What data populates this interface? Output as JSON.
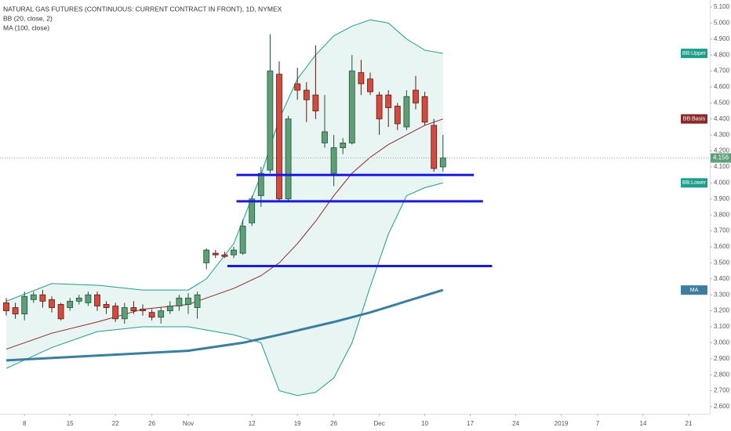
{
  "chart_data": {
    "type": "candlestick",
    "title": "NATURAL GAS FUTURES (CONTINUOUS: CURRENT CONTRACT IN FRONT), 1D, NYMEX",
    "indicator_legend": [
      "BB (20, close, 2)",
      "MA (100, close)"
    ],
    "xlim": [
      -0.69,
      77.33
    ],
    "xticks": [
      {
        "value": 2,
        "label": "8"
      },
      {
        "value": 7,
        "label": "15"
      },
      {
        "value": 12,
        "label": "22"
      },
      {
        "value": 16,
        "label": "26"
      },
      {
        "value": 20,
        "label": "Nov"
      },
      {
        "value": 27,
        "label": "12"
      },
      {
        "value": 32,
        "label": "19"
      },
      {
        "value": 36,
        "label": "26"
      },
      {
        "value": 41,
        "label": "Dec"
      },
      {
        "value": 46,
        "label": "10"
      },
      {
        "value": 51,
        "label": "17"
      },
      {
        "value": 56,
        "label": "24"
      },
      {
        "value": 61,
        "label": "2019"
      },
      {
        "value": 65,
        "label": "7"
      },
      {
        "value": 70,
        "label": "14"
      },
      {
        "value": 75,
        "label": "21"
      }
    ],
    "ylim": [
      2.556,
      5.144
    ],
    "yticks": [
      {
        "value": 2.6,
        "label": "2.600"
      },
      {
        "value": 2.7,
        "label": "2.700"
      },
      {
        "value": 2.8,
        "label": "2.800"
      },
      {
        "value": 2.9,
        "label": "2.900"
      },
      {
        "value": 3.0,
        "label": "3.000"
      },
      {
        "value": 3.1,
        "label": "3.100"
      },
      {
        "value": 3.2,
        "label": "3.200"
      },
      {
        "value": 3.3,
        "label": "3.300"
      },
      {
        "value": 3.4,
        "label": "3.400"
      },
      {
        "value": 3.5,
        "label": "3.500"
      },
      {
        "value": 3.6,
        "label": "3.600"
      },
      {
        "value": 3.7,
        "label": "3.700"
      },
      {
        "value": 3.8,
        "label": "3.800"
      },
      {
        "value": 3.9,
        "label": "3.900"
      },
      {
        "value": 4.0,
        "label": "4.000"
      },
      {
        "value": 4.1,
        "label": "4.100"
      },
      {
        "value": 4.2,
        "label": "4.200"
      },
      {
        "value": 4.3,
        "label": "4.300"
      },
      {
        "value": 4.4,
        "label": "4.400"
      },
      {
        "value": 4.5,
        "label": "4.500"
      },
      {
        "value": 4.6,
        "label": "4.600"
      },
      {
        "value": 4.7,
        "label": "4.700"
      },
      {
        "value": 4.8,
        "label": "4.800"
      },
      {
        "value": 4.9,
        "label": "4.900"
      },
      {
        "value": 5.0,
        "label": "5.000"
      },
      {
        "value": 5.1,
        "label": "5.100"
      }
    ],
    "grid": false,
    "up_color": "#5e9e78",
    "up_border": "#225437",
    "down_color": "#d44a3f",
    "down_border": "#5b1a13",
    "x": [
      0,
      1,
      2,
      3,
      4,
      5,
      6,
      7,
      8,
      9,
      10,
      11,
      12,
      13,
      14,
      15,
      16,
      17,
      18,
      19,
      20,
      21,
      22,
      23,
      24,
      25,
      26,
      27,
      28,
      29,
      30,
      31,
      32,
      33,
      34,
      35,
      36,
      37,
      38,
      39,
      40,
      41,
      42,
      43,
      44,
      45,
      46,
      47,
      48
    ],
    "open": [
      3.25,
      3.22,
      3.18,
      3.27,
      3.3,
      3.27,
      3.24,
      3.22,
      3.26,
      3.25,
      3.3,
      3.24,
      3.23,
      3.15,
      3.22,
      3.21,
      3.19,
      3.16,
      3.2,
      3.23,
      3.24,
      3.22,
      3.5,
      3.56,
      3.55,
      3.55,
      3.56,
      3.75,
      3.92,
      4.08,
      4.68,
      3.9,
      4.62,
      4.58,
      4.55,
      4.25,
      4.06,
      4.22,
      4.25,
      4.69,
      4.65,
      4.55,
      4.55,
      4.48,
      4.35,
      4.58,
      4.54,
      4.36,
      4.1
    ],
    "high": [
      3.28,
      3.25,
      3.32,
      3.32,
      3.33,
      3.29,
      3.25,
      3.28,
      3.3,
      3.32,
      3.32,
      3.26,
      3.25,
      3.25,
      3.26,
      3.24,
      3.21,
      3.22,
      3.26,
      3.3,
      3.31,
      3.32,
      3.59,
      3.58,
      3.57,
      3.6,
      3.77,
      3.92,
      4.1,
      4.93,
      4.76,
      4.42,
      4.72,
      4.63,
      4.86,
      4.55,
      4.3,
      4.28,
      4.8,
      4.77,
      4.69,
      4.57,
      4.58,
      4.5,
      4.58,
      4.67,
      4.57,
      4.4,
      4.3
    ],
    "low": [
      3.17,
      3.15,
      3.14,
      3.25,
      3.22,
      3.19,
      3.14,
      3.2,
      3.24,
      3.23,
      3.2,
      3.18,
      3.13,
      3.12,
      3.18,
      3.17,
      3.14,
      3.12,
      3.18,
      3.2,
      3.18,
      3.15,
      3.46,
      3.53,
      3.53,
      3.53,
      3.55,
      3.73,
      3.85,
      4.06,
      3.88,
      3.88,
      4.52,
      4.38,
      4.4,
      4.22,
      3.98,
      4.18,
      4.24,
      4.55,
      4.55,
      4.3,
      4.35,
      4.33,
      4.33,
      4.46,
      4.36,
      4.07,
      4.07
    ],
    "close": [
      3.2,
      3.18,
      3.29,
      3.3,
      3.26,
      3.22,
      3.15,
      3.26,
      3.28,
      3.3,
      3.23,
      3.22,
      3.15,
      3.22,
      3.2,
      3.2,
      3.16,
      3.2,
      3.23,
      3.28,
      3.28,
      3.3,
      3.58,
      3.55,
      3.54,
      3.58,
      3.73,
      3.9,
      4.06,
      4.7,
      3.9,
      4.4,
      4.58,
      4.52,
      4.45,
      4.32,
      4.22,
      4.25,
      4.7,
      4.62,
      4.57,
      4.4,
      4.47,
      4.37,
      4.54,
      4.5,
      4.38,
      4.09,
      4.156
    ],
    "indicators": [
      {
        "name": "BB:Upper",
        "color": "#1c9e8a",
        "width": 1,
        "x": [
          0,
          5,
          10,
          15,
          20,
          22,
          25,
          28,
          30,
          32,
          34,
          36,
          38,
          40,
          42,
          44,
          46,
          48
        ],
        "values": [
          3.26,
          3.37,
          3.36,
          3.33,
          3.33,
          3.4,
          3.62,
          4.05,
          4.4,
          4.65,
          4.8,
          4.92,
          4.98,
          5.02,
          5.0,
          4.9,
          4.83,
          4.81
        ]
      },
      {
        "name": "BB:Basis",
        "color": "#8b2a2a",
        "width": 1,
        "x": [
          0,
          5,
          10,
          15,
          20,
          22,
          25,
          28,
          30,
          32,
          34,
          36,
          38,
          40,
          42,
          44,
          46,
          48
        ],
        "values": [
          2.96,
          3.06,
          3.13,
          3.21,
          3.24,
          3.28,
          3.34,
          3.42,
          3.5,
          3.62,
          3.76,
          3.92,
          4.06,
          4.16,
          4.24,
          4.3,
          4.36,
          4.4
        ]
      },
      {
        "name": "BB:Lower",
        "color": "#1c9e8a",
        "width": 1,
        "x": [
          0,
          5,
          10,
          15,
          20,
          22,
          25,
          28,
          30,
          32,
          34,
          36,
          38,
          40,
          42,
          44,
          46,
          48
        ],
        "values": [
          2.84,
          2.97,
          3.07,
          3.1,
          3.1,
          3.08,
          3.05,
          3.0,
          2.7,
          2.67,
          2.69,
          2.78,
          3.0,
          3.35,
          3.68,
          3.92,
          3.97,
          4.0
        ]
      },
      {
        "name": "MA",
        "color": "#3b7ea1",
        "width": 3,
        "x": [
          0,
          10,
          20,
          26,
          30,
          36,
          40,
          44,
          48
        ],
        "values": [
          2.89,
          2.92,
          2.95,
          3.0,
          3.05,
          3.13,
          3.19,
          3.26,
          3.33
        ]
      }
    ],
    "band_fill": "#e4f3ef",
    "levels_color": "#1a1ae0",
    "levels": [
      {
        "value": 4.05,
        "x": [
          25.3,
          51.4
        ]
      },
      {
        "value": 3.885,
        "x": [
          25.3,
          52.4
        ]
      },
      {
        "value": 3.48,
        "x": [
          24.3,
          53.4
        ]
      }
    ]
  }
}
